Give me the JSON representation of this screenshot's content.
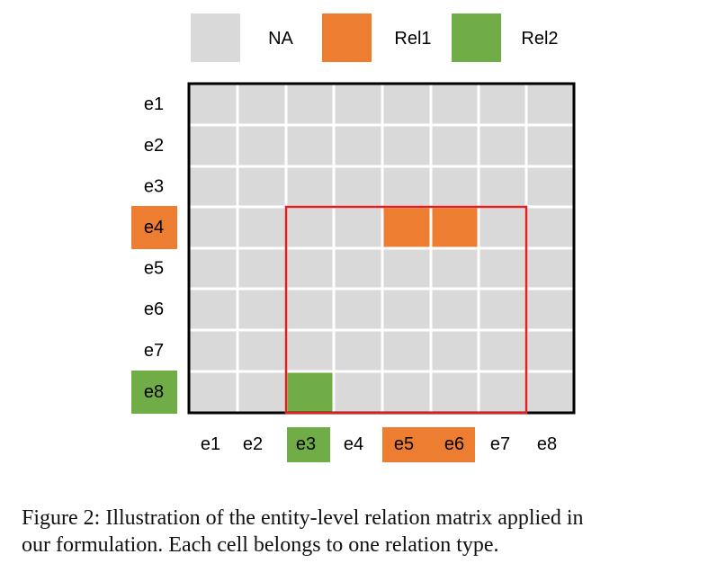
{
  "legend": [
    {
      "label": "NA",
      "color_key": "na"
    },
    {
      "label": "Rel1",
      "color_key": "rel1"
    },
    {
      "label": "Rel2",
      "color_key": "rel2"
    }
  ],
  "row_labels": [
    "e1",
    "e2",
    "e3",
    "e4",
    "e5",
    "e6",
    "e7",
    "e8"
  ],
  "col_labels": [
    "e1",
    "e2",
    "e3",
    "e4",
    "e5",
    "e6",
    "e7",
    "e8"
  ],
  "row_label_colors": [
    "none",
    "none",
    "none",
    "rel1",
    "none",
    "none",
    "none",
    "rel2"
  ],
  "col_label_colors": [
    "none",
    "none",
    "rel2",
    "none",
    "rel1",
    "rel1",
    "none",
    "none"
  ],
  "matrix": [
    [
      "na",
      "na",
      "na",
      "na",
      "na",
      "na",
      "na",
      "na"
    ],
    [
      "na",
      "na",
      "na",
      "na",
      "na",
      "na",
      "na",
      "na"
    ],
    [
      "na",
      "na",
      "na",
      "na",
      "na",
      "na",
      "na",
      "na"
    ],
    [
      "na",
      "na",
      "na",
      "na",
      "rel1",
      "rel1",
      "na",
      "na"
    ],
    [
      "na",
      "na",
      "na",
      "na",
      "na",
      "na",
      "na",
      "na"
    ],
    [
      "na",
      "na",
      "na",
      "na",
      "na",
      "na",
      "na",
      "na"
    ],
    [
      "na",
      "na",
      "na",
      "na",
      "na",
      "na",
      "na",
      "na"
    ],
    [
      "na",
      "na",
      "rel2",
      "na",
      "na",
      "na",
      "na",
      "na"
    ]
  ],
  "highlight_rows": [
    4,
    8
  ],
  "highlight_cols": [
    3,
    7
  ],
  "colors": {
    "na": "#d9d9d9",
    "rel1": "#ed7d31",
    "rel2": "#70ad47",
    "highlight": "#e41e1e",
    "grid_line": "#ffffff",
    "border": "#000000",
    "text": "#000000"
  },
  "caption": {
    "line1": "Figure 2:  Illustration of the entity-level relation matrix applied in",
    "line2": "our formulation. Each cell belongs to one relation type."
  }
}
